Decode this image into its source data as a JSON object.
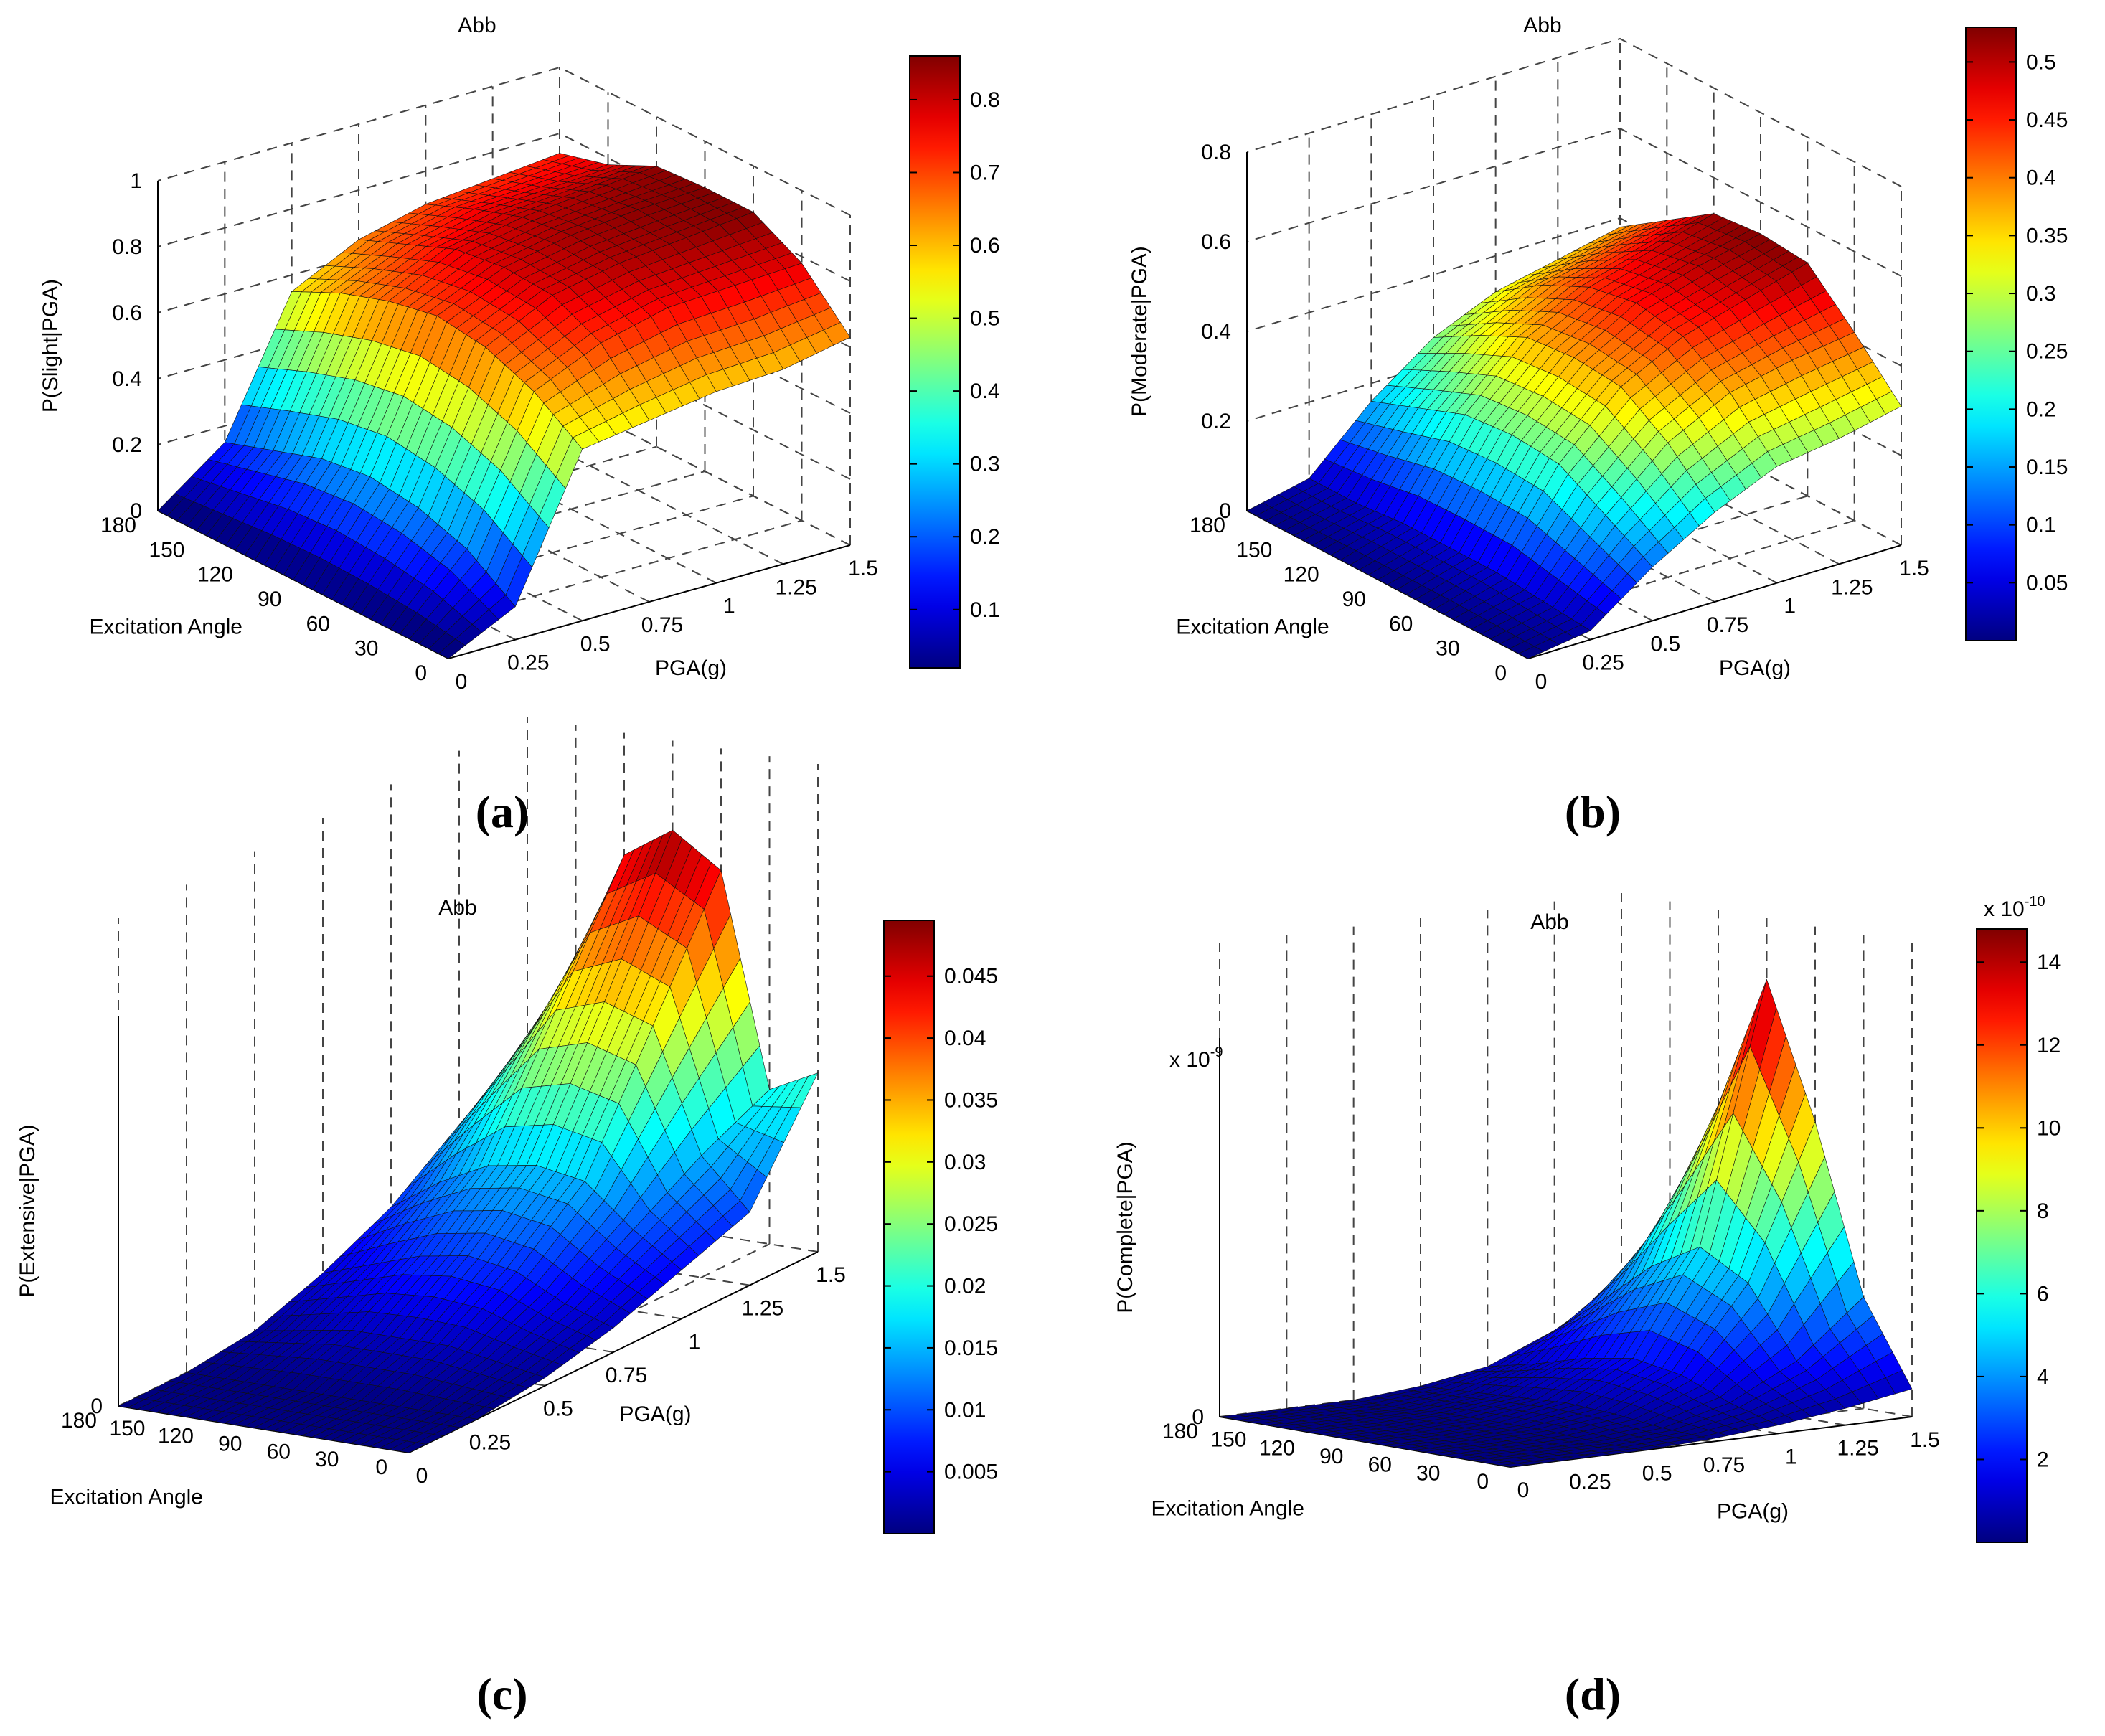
{
  "figure": {
    "captions": [
      "(a)",
      "(b)",
      "(c)",
      "(d)"
    ]
  },
  "chart_data": [
    {
      "type": "surface3d",
      "panel": "a",
      "title": "Abb",
      "zlabel": "P(Slight|PGA)",
      "angle_label": "Excitation Angle",
      "pga_label": "PGA(g)",
      "angle_ticks": [
        "180",
        "150",
        "120",
        "90",
        "60",
        "30",
        "0"
      ],
      "pga_ticks": [
        "0",
        "0.25",
        "0.5",
        "0.75",
        "1",
        "1.25",
        "1.5"
      ],
      "z_ticks": [
        "0",
        "0.2",
        "0.4",
        "0.6",
        "0.8",
        "1"
      ],
      "z_max": 1,
      "colorbar_ticks": [
        "0.1",
        "0.2",
        "0.3",
        "0.4",
        "0.5",
        "0.6",
        "0.7",
        "0.8"
      ],
      "colorbar_range": [
        0.02,
        0.86
      ],
      "colormap": "jet",
      "angles": [
        0,
        30,
        60,
        90,
        120,
        150,
        180
      ],
      "pga": [
        0,
        0.25,
        0.5,
        0.75,
        1.0,
        1.25,
        1.5
      ],
      "z": [
        [
          0.0,
          0.1,
          0.52,
          0.55,
          0.58,
          0.59,
          0.63
        ],
        [
          0.0,
          0.2,
          0.62,
          0.71,
          0.76,
          0.77,
          0.78
        ],
        [
          0.0,
          0.25,
          0.68,
          0.78,
          0.82,
          0.84,
          0.86
        ],
        [
          0.0,
          0.27,
          0.7,
          0.79,
          0.83,
          0.85,
          0.86
        ],
        [
          0.0,
          0.25,
          0.67,
          0.77,
          0.81,
          0.83,
          0.85
        ],
        [
          0.0,
          0.2,
          0.62,
          0.71,
          0.76,
          0.77,
          0.78
        ],
        [
          0.0,
          0.15,
          0.55,
          0.65,
          0.7,
          0.72,
          0.74
        ]
      ]
    },
    {
      "type": "surface3d",
      "panel": "b",
      "title": "Abb",
      "zlabel": "P(Moderate|PGA)",
      "angle_label": "Excitation Angle",
      "pga_label": "PGA(g)",
      "angle_ticks": [
        "180",
        "150",
        "120",
        "90",
        "60",
        "30",
        "0"
      ],
      "pga_ticks": [
        "0",
        "0.25",
        "0.5",
        "0.75",
        "1",
        "1.25",
        "1.5"
      ],
      "z_ticks": [
        "0",
        "0.2",
        "0.4",
        "0.6",
        "0.8"
      ],
      "z_max": 0.8,
      "colorbar_ticks": [
        "0.05",
        "0.1",
        "0.15",
        "0.2",
        "0.25",
        "0.3",
        "0.35",
        "0.4",
        "0.45",
        "0.5"
      ],
      "colorbar_range": [
        0.0,
        0.53
      ],
      "colormap": "jet",
      "angles": [
        0,
        30,
        60,
        90,
        120,
        150,
        180
      ],
      "pga": [
        0,
        0.25,
        0.5,
        0.75,
        1.0,
        1.25,
        1.5
      ],
      "z": [
        [
          0.0,
          0.02,
          0.12,
          0.2,
          0.26,
          0.28,
          0.31
        ],
        [
          0.0,
          0.03,
          0.18,
          0.3,
          0.37,
          0.4,
          0.42
        ],
        [
          0.0,
          0.04,
          0.24,
          0.37,
          0.44,
          0.48,
          0.52
        ],
        [
          0.0,
          0.04,
          0.25,
          0.38,
          0.46,
          0.5,
          0.53
        ],
        [
          0.0,
          0.04,
          0.24,
          0.37,
          0.44,
          0.48,
          0.52
        ],
        [
          0.0,
          0.03,
          0.2,
          0.32,
          0.39,
          0.42,
          0.45
        ],
        [
          0.0,
          0.03,
          0.16,
          0.26,
          0.32,
          0.35,
          0.38
        ]
      ]
    },
    {
      "type": "surface3d",
      "panel": "c",
      "title": "Abb",
      "zlabel": "P(Extensive|PGA)",
      "angle_label": "Excitation Angle",
      "pga_label": "PGA(g)",
      "angle_ticks": [
        "180",
        "150",
        "120",
        "90",
        "60",
        "30",
        "0"
      ],
      "pga_ticks": [
        "0",
        "0.25",
        "0.5",
        "0.75",
        "1",
        "1.25",
        "1.5"
      ],
      "z_ticks": [
        "0"
      ],
      "z_max": 0.06,
      "colorbar_ticks": [
        "0.005",
        "0.01",
        "0.015",
        "0.02",
        "0.025",
        "0.03",
        "0.035",
        "0.04",
        "0.045"
      ],
      "colorbar_range": [
        0.0,
        0.0495
      ],
      "colormap": "jet",
      "angles": [
        0,
        30,
        60,
        90,
        120,
        150,
        180
      ],
      "pga": [
        0,
        0.25,
        0.5,
        0.75,
        1.0,
        1.25,
        1.5
      ],
      "z": [
        [
          0.0,
          0.0,
          0.001,
          0.003,
          0.006,
          0.009,
          0.022
        ],
        [
          0.0,
          0.0,
          0.002,
          0.005,
          0.01,
          0.015,
          0.019
        ],
        [
          0.0,
          0.0,
          0.003,
          0.008,
          0.015,
          0.03,
          0.045
        ],
        [
          0.0,
          0.0,
          0.003,
          0.009,
          0.016,
          0.032,
          0.049
        ],
        [
          0.0,
          0.0,
          0.003,
          0.008,
          0.015,
          0.03,
          0.045
        ],
        [
          0.0,
          0.0,
          0.002,
          0.006,
          0.012,
          0.022,
          0.031
        ],
        [
          0.0,
          0.0,
          0.001,
          0.004,
          0.008,
          0.014,
          0.02
        ]
      ]
    },
    {
      "type": "surface3d",
      "panel": "d",
      "title": "Abb",
      "zlabel": "P(Complete|PGA)",
      "angle_label": "Excitation Angle",
      "pga_label": "PGA(g)",
      "angle_ticks": [
        "180",
        "150",
        "120",
        "90",
        "60",
        "30",
        "0"
      ],
      "pga_ticks": [
        "0",
        "0.25",
        "0.5",
        "0.75",
        "1",
        "1.25",
        "1.5"
      ],
      "z_ticks": [
        "0"
      ],
      "z_max": 1.7e-09,
      "z_exponent_label": "x 10",
      "z_exponent": "-9",
      "colorbar_ticks": [
        "2",
        "4",
        "6",
        "8",
        "10",
        "12",
        "14"
      ],
      "colorbar_range": [
        0,
        14.8
      ],
      "colorbar_exponent_label": "x 10",
      "colorbar_exponent": "-10",
      "colormap": "jet",
      "angles": [
        0,
        30,
        60,
        90,
        120,
        150,
        180
      ],
      "pga": [
        0,
        0.25,
        0.5,
        0.75,
        1.0,
        1.25,
        1.5
      ],
      "z": [
        [
          0,
          0,
          0.0,
          1e-11,
          3e-11,
          6e-11,
          1e-10
        ],
        [
          0,
          0,
          0.0,
          2e-11,
          8e-11,
          2e-10,
          4e-10
        ],
        [
          0,
          0,
          1e-11,
          4e-11,
          1.5e-10,
          4.5e-10,
          1e-09
        ],
        [
          0,
          0,
          1e-11,
          5e-11,
          1.8e-10,
          5.5e-10,
          1.48e-09
        ],
        [
          0,
          0,
          1e-11,
          4e-11,
          1.5e-10,
          4.5e-10,
          1e-09
        ],
        [
          0,
          0,
          0.0,
          3e-11,
          1e-10,
          3e-10,
          6e-10
        ],
        [
          0,
          0,
          0.0,
          2e-11,
          6e-11,
          1.6e-10,
          3e-10
        ]
      ]
    }
  ]
}
